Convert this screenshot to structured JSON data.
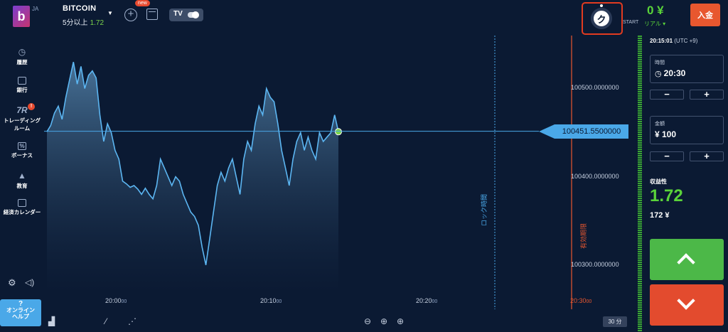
{
  "header": {
    "logo_letter": "b",
    "language": "JA",
    "asset": {
      "name": "BITCOIN",
      "duration_label": "5分以上",
      "payout": "1.72"
    },
    "new_badge": "new",
    "balance": "0 ¥",
    "account_type": "リアル ▾",
    "start_label": "START",
    "timer_letter": "ク",
    "deposit_label": "入金"
  },
  "sidebar": {
    "items": [
      {
        "label": "履歴",
        "icon": "clock-icon"
      },
      {
        "label": "銀行",
        "icon": "wallet-icon"
      },
      {
        "label": "トレーディング",
        "label2": "ルーム",
        "icon": "trading-room-icon",
        "badge": "!",
        "icon_text": "7R"
      },
      {
        "label": "ボーナス",
        "icon": "bonus-icon",
        "icon_text": "%"
      },
      {
        "label": "教育",
        "icon": "graduation-icon"
      },
      {
        "label": "経済カレンダー",
        "icon": "calendar-icon"
      }
    ],
    "help": {
      "line1": "?",
      "line2": "オンライン",
      "line3": "ヘルプ"
    }
  },
  "chart": {
    "current_price": "100451.5500000",
    "price_ticks": [
      {
        "label": "100500.0000000",
        "value": 100500
      },
      {
        "label": "100400.0000000",
        "value": 100400
      },
      {
        "label": "100300.0000000",
        "value": 100300
      }
    ],
    "time_ticks": [
      {
        "main": "20:00",
        "sec": "00"
      },
      {
        "main": "20:10",
        "sec": "00"
      },
      {
        "main": "20:20",
        "sec": "00"
      }
    ],
    "lock_label": "ロック時間",
    "expiry_label": "有効期限",
    "expiry_time": "20:30",
    "expiry_time_sec": "00",
    "period_label": "30 分",
    "colors": {
      "line": "#5cb6f2",
      "current": "#4aa8e8",
      "expiry": "#e8572f",
      "dot": "#7bd34a"
    }
  },
  "chart_data": {
    "type": "area",
    "x_labels": [
      "20:00",
      "20:10",
      "20:20",
      "20:30"
    ],
    "ylim": [
      100270,
      100560
    ],
    "current_value": 100451.55,
    "values": [
      100451,
      100458,
      100472,
      100480,
      100465,
      100490,
      100510,
      100530,
      100505,
      100525,
      100500,
      100515,
      100520,
      100512,
      100470,
      100440,
      100460,
      100450,
      100430,
      100420,
      100395,
      100392,
      100388,
      100390,
      100386,
      100380,
      100387,
      100380,
      100375,
      100390,
      100420,
      100410,
      100400,
      100390,
      100400,
      100395,
      100380,
      100370,
      100360,
      100355,
      100345,
      100320,
      100300,
      100330,
      100360,
      100390,
      100405,
      100395,
      100410,
      100420,
      100400,
      100380,
      100420,
      100440,
      100430,
      100460,
      100480,
      100470,
      100500,
      100490,
      100485,
      100460,
      100430,
      100410,
      100390,
      100420,
      100440,
      100450,
      100430,
      100445,
      100430,
      100420,
      100450,
      100440,
      100445,
      100450,
      100470,
      100451
    ]
  },
  "panel": {
    "clock": "20:15:01",
    "timezone": "(UTC +9)",
    "time_label": "時間",
    "time_value": "20:30",
    "amount_label": "金額",
    "amount_value": "¥ 100",
    "minus": "−",
    "plus": "+",
    "profit_label": "収益性",
    "profit_rate": "1.72",
    "profit_amount": "172 ¥"
  }
}
